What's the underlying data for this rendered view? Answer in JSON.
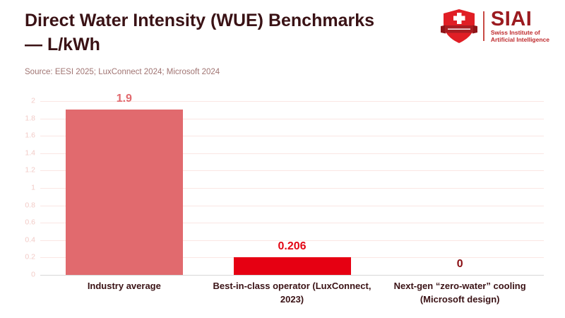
{
  "header": {
    "title_line1": "Direct Water Intensity (WUE) Benchmarks",
    "title_line2": "— L/kWh",
    "source": "Source: EESI 2025; LuxConnect 2024; Microsoft 2024"
  },
  "logo": {
    "acronym": "SIAI",
    "subtitle_line1": "Swiss Institute of",
    "subtitle_line2": "Artificial Intelligence",
    "shield_icon": "swiss-shield-cross-banner-icon"
  },
  "colors": {
    "title_text": "#3a1215",
    "source_text": "#a07472",
    "logo_red": "#9b1b20",
    "logo_sub_red": "#bf2b2e"
  },
  "chart_data": {
    "type": "bar",
    "title": "Direct Water Intensity (WUE) Benchmarks — L/kWh",
    "unit": "L/kWh",
    "categories": [
      "Industry average",
      "Best-in-class operator (LuxConnect, 2023)",
      "Next-gen “zero-water” cooling (Microsoft design)"
    ],
    "categories_wrapped": [
      [
        "Industry average"
      ],
      [
        "Best-in-class operator (LuxConnect,",
        "2023)"
      ],
      [
        "Next-gen “zero-water” cooling",
        "(Microsoft design)"
      ]
    ],
    "values": [
      1.9,
      0.206,
      0
    ],
    "value_labels": [
      "1.9",
      "0.206",
      "0"
    ],
    "ylim": [
      0,
      2
    ],
    "ytick_step": 0.2,
    "yticks": [
      "2",
      "1.8",
      "1.6",
      "1.4",
      "1.2",
      "1",
      "0.8",
      "0.6",
      "0.4",
      "0.2",
      "0"
    ],
    "grid": true,
    "legend": false,
    "bar_colors": [
      "#e16a6e",
      "#e60012",
      "#e60012"
    ],
    "value_label_colors": [
      "#e1696e",
      "#e30613",
      "#8a0e13"
    ],
    "style": {
      "grid_color": "#fae6e3",
      "baseline_color": "#d7d7d7",
      "ytick_text_color": "#f2cbc7",
      "xlabel_text_color": "#3a1215"
    }
  }
}
